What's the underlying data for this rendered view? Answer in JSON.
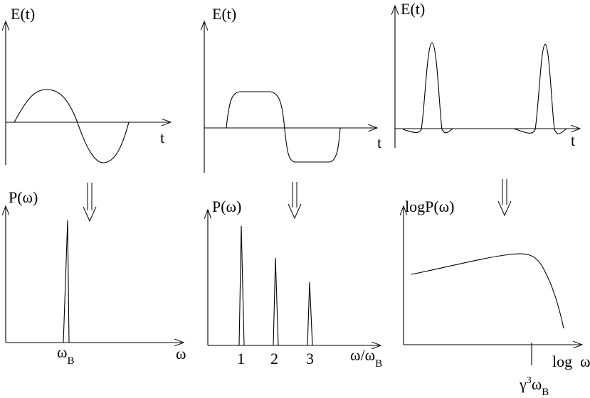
{
  "panels": {
    "sine": {
      "ylabel": "E(t)",
      "xlabel": "t"
    },
    "square": {
      "ylabel": "E(t)",
      "xlabel": "t"
    },
    "pulse": {
      "ylabel": "E(t)",
      "xlabel": "t"
    },
    "single_line": {
      "ylabel": "P(ω)",
      "xlabel": "ω",
      "tick": {
        "main": "ω",
        "sub": "B"
      }
    },
    "harmonics": {
      "ylabel": "P(ω)",
      "xlabel": {
        "main": "ω/ω",
        "sub": "B"
      },
      "ticks": [
        "1",
        "2",
        "3"
      ]
    },
    "continuum": {
      "ylabel": "logP(ω)",
      "xlabel": "log  ω",
      "tick": {
        "base": "γ",
        "sup": "3",
        "main": "ω",
        "sub": "B"
      }
    }
  }
}
